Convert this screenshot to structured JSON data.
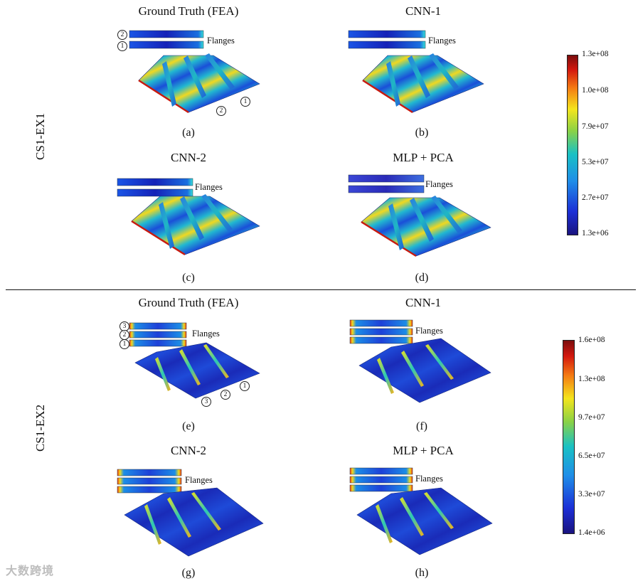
{
  "rows": [
    {
      "label": "CS1-EX1",
      "colorbar": {
        "ticks": [
          "1.3e+08",
          "1.0e+08",
          "7.9e+07",
          "5.3e+07",
          "2.7e+07",
          "1.3e+06"
        ]
      },
      "panels": [
        {
          "title": "Ground Truth (FEA)",
          "caption": "(a)",
          "flanges_label": "Flanges",
          "flange_numbers": [
            "2",
            "1"
          ],
          "web_numbers": [
            "2",
            "1"
          ]
        },
        {
          "title": "CNN-1",
          "caption": "(b)",
          "flanges_label": "Flanges"
        },
        {
          "title": "CNN-2",
          "caption": "(c)",
          "flanges_label": "Flanges"
        },
        {
          "title": "MLP + PCA",
          "caption": "(d)",
          "flanges_label": "Flanges"
        }
      ]
    },
    {
      "label": "CS1-EX2",
      "colorbar": {
        "ticks": [
          "1.6e+08",
          "1.3e+08",
          "9.7e+07",
          "6.5e+07",
          "3.3e+07",
          "1.4e+06"
        ]
      },
      "panels": [
        {
          "title": "Ground Truth (FEA)",
          "caption": "(e)",
          "flanges_label": "Flanges",
          "flange_numbers": [
            "3",
            "2",
            "1"
          ],
          "web_numbers": [
            "3",
            "2",
            "1"
          ]
        },
        {
          "title": "CNN-1",
          "caption": "(f)",
          "flanges_label": "Flanges"
        },
        {
          "title": "CNN-2",
          "caption": "(g)",
          "flanges_label": "Flanges"
        },
        {
          "title": "MLP + PCA",
          "caption": "(h)",
          "flanges_label": "Flanges"
        }
      ]
    }
  ],
  "watermark": "大数跨境",
  "colors": {
    "low": "#14128e",
    "mid": "#19c1c4",
    "high": "#8b1010"
  }
}
